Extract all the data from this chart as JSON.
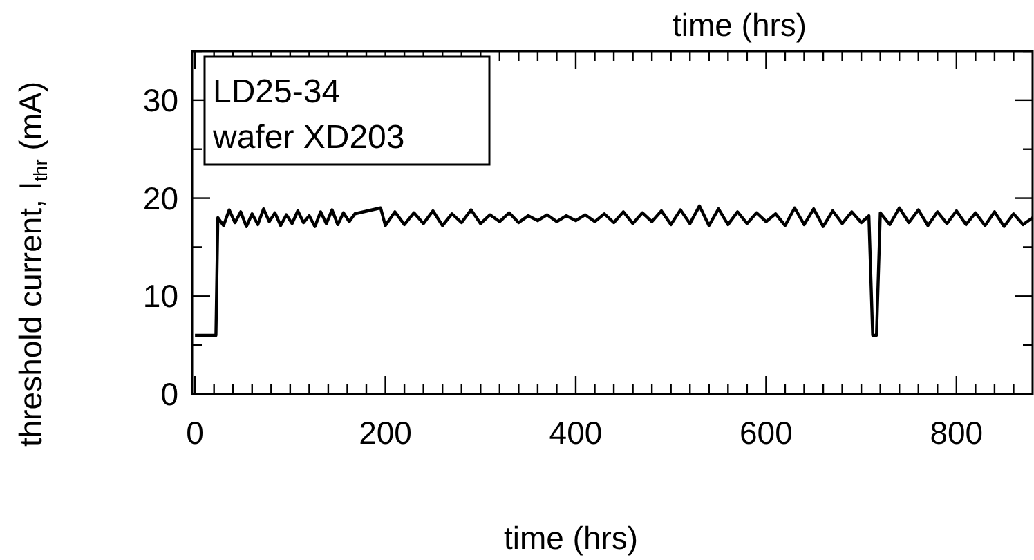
{
  "chart_data": {
    "type": "line",
    "xlabel": "time (hrs)",
    "x2label": "time (hrs)",
    "ylabel": "threshold current, I$_{thr}$ (mA)",
    "annotations": [
      "LD25-34\nwafer XD203"
    ],
    "xlim": [
      -3,
      880
    ],
    "ylim": [
      0,
      35
    ],
    "xticks": [
      0,
      {
        "value": 20,
        "label": null
      },
      {
        "value": 40,
        "label": null
      },
      {
        "value": 60,
        "label": null
      },
      {
        "value": 80,
        "label": null
      },
      {
        "value": 100,
        "label": null
      },
      {
        "value": 120,
        "label": null
      },
      {
        "value": 140,
        "label": null
      },
      {
        "value": 160,
        "label": null
      },
      {
        "value": 180,
        "label": null
      },
      200,
      {
        "value": 220,
        "label": null
      },
      {
        "value": 240,
        "label": null
      },
      {
        "value": 260,
        "label": null
      },
      {
        "value": 280,
        "label": null
      },
      {
        "value": 300,
        "label": null
      },
      {
        "value": 320,
        "label": null
      },
      {
        "value": 340,
        "label": null
      },
      {
        "value": 360,
        "label": null
      },
      {
        "value": 380,
        "label": null
      },
      400,
      {
        "value": 420,
        "label": null
      },
      {
        "value": 440,
        "label": null
      },
      {
        "value": 460,
        "label": null
      },
      {
        "value": 480,
        "label": null
      },
      {
        "value": 500,
        "label": null
      },
      {
        "value": 520,
        "label": null
      },
      {
        "value": 540,
        "label": null
      },
      {
        "value": 560,
        "label": null
      },
      {
        "value": 580,
        "label": null
      },
      600,
      {
        "value": 620,
        "label": null
      },
      {
        "value": 640,
        "label": null
      },
      {
        "value": 660,
        "label": null
      },
      {
        "value": 680,
        "label": null
      },
      {
        "value": 700,
        "label": null
      },
      {
        "value": 720,
        "label": null
      },
      {
        "value": 740,
        "label": null
      },
      {
        "value": 760,
        "label": null
      },
      {
        "value": 780,
        "label": null
      },
      800,
      {
        "value": 820,
        "label": null
      },
      {
        "value": 840,
        "label": null
      },
      {
        "value": 860,
        "label": null
      }
    ],
    "yticks": [
      0,
      {
        "value": 5,
        "label": null
      },
      10,
      {
        "value": 15,
        "label": null
      },
      20,
      {
        "value": 25,
        "label": null
      },
      30,
      {
        "value": 35,
        "label": null
      }
    ],
    "grid": false,
    "marker": "none",
    "line_style": "solid",
    "series": [
      {
        "color": "#000000",
        "x": [
          0,
          10,
          20,
          22,
          24,
          30,
          36,
          42,
          48,
          54,
          60,
          66,
          72,
          78,
          84,
          90,
          96,
          102,
          108,
          114,
          120,
          126,
          132,
          138,
          144,
          150,
          156,
          162,
          168,
          195,
          200,
          210,
          220,
          230,
          240,
          250,
          260,
          270,
          280,
          290,
          300,
          310,
          320,
          330,
          340,
          350,
          360,
          370,
          380,
          390,
          400,
          410,
          420,
          430,
          440,
          450,
          460,
          470,
          480,
          490,
          500,
          510,
          520,
          530,
          540,
          550,
          560,
          570,
          580,
          590,
          600,
          610,
          620,
          630,
          640,
          650,
          660,
          670,
          680,
          690,
          700,
          708,
          712,
          716,
          720,
          730,
          740,
          750,
          760,
          770,
          780,
          790,
          800,
          810,
          820,
          830,
          840,
          850,
          860,
          870,
          880
        ],
        "values": [
          6,
          6,
          6,
          6,
          18,
          17.2,
          18.8,
          17.5,
          18.6,
          17.1,
          18.4,
          17.3,
          18.9,
          17.6,
          18.5,
          17.2,
          18.3,
          17.4,
          18.7,
          17.5,
          18.2,
          17.1,
          18.6,
          17.4,
          18.8,
          17.3,
          18.5,
          17.6,
          18.4,
          19,
          17.2,
          18.6,
          17.3,
          18.5,
          17.4,
          18.7,
          17.2,
          18.4,
          17.5,
          18.8,
          17.4,
          18.3,
          17.6,
          18.5,
          17.5,
          18.2,
          17.7,
          18.3,
          17.6,
          18.2,
          17.7,
          18.3,
          17.6,
          18.4,
          17.5,
          18.6,
          17.4,
          18.5,
          17.6,
          18.7,
          17.3,
          18.8,
          17.4,
          19.2,
          17.2,
          18.9,
          17.3,
          18.6,
          17.4,
          18.5,
          17.6,
          18.4,
          17.2,
          19,
          17.3,
          18.9,
          17.1,
          18.7,
          17.4,
          18.6,
          17.5,
          18.2,
          6,
          6,
          18.5,
          17.3,
          19,
          17.5,
          18.8,
          17.2,
          18.6,
          17.4,
          18.7,
          17.3,
          18.5,
          17.2,
          18.6,
          17.1,
          18.4,
          17.3,
          18
        ]
      }
    ]
  }
}
